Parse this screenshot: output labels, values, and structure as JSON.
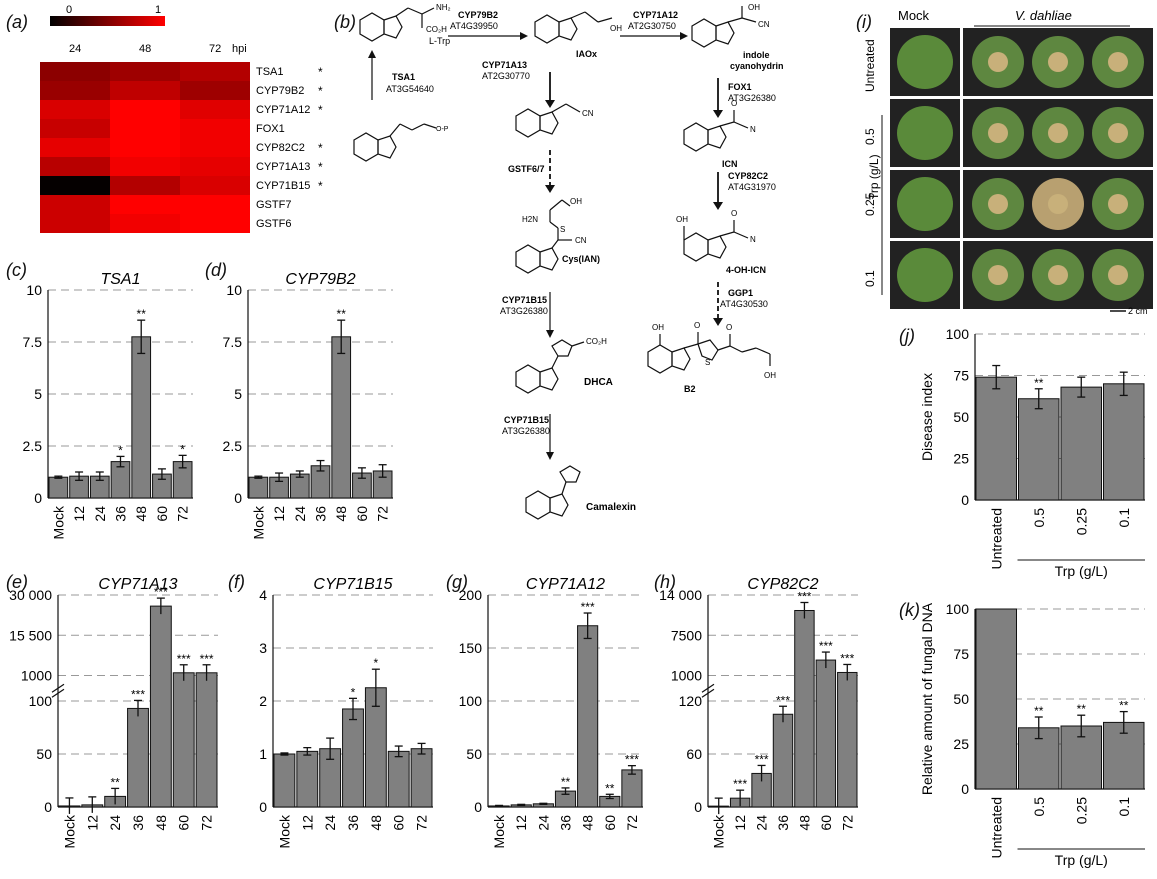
{
  "panels": {
    "a": "(a)",
    "b": "(b)",
    "c": "(c)",
    "d": "(d)",
    "e": "(e)",
    "f": "(f)",
    "g": "(g)",
    "h": "(h)",
    "i": "(i)",
    "j": "(j)",
    "k": "(k)"
  },
  "heatmap": {
    "scale_min": "0",
    "scale_max": "1",
    "col_labels": [
      "24",
      "48",
      "72"
    ],
    "hpi": "hpi",
    "colors": {
      "low": "#000000",
      "high": "#ff0000"
    },
    "rows": [
      {
        "gene": "TSA1",
        "star": "*",
        "values": [
          0.55,
          0.62,
          0.7
        ]
      },
      {
        "gene": "CYP79B2",
        "star": "*",
        "values": [
          0.6,
          0.75,
          0.62
        ]
      },
      {
        "gene": "CYP71A12",
        "star": "*",
        "values": [
          0.85,
          1.0,
          0.88
        ]
      },
      {
        "gene": "FOX1",
        "star": "",
        "values": [
          0.78,
          1.0,
          0.95
        ]
      },
      {
        "gene": "CYP82C2",
        "star": "*",
        "values": [
          0.9,
          1.0,
          0.95
        ]
      },
      {
        "gene": "CYP71A13",
        "star": "*",
        "values": [
          0.72,
          0.95,
          0.9
        ]
      },
      {
        "gene": "CYP71B15",
        "star": "*",
        "values": [
          0.02,
          0.7,
          0.85
        ]
      },
      {
        "gene": "GSTF7",
        "star": "",
        "values": [
          0.8,
          1.0,
          1.0
        ]
      },
      {
        "gene": "GSTF6",
        "star": "",
        "values": [
          0.8,
          0.95,
          1.0
        ]
      }
    ]
  },
  "pathway": {
    "ltrp": "L-Trp",
    "cyp79b2": "CYP79B2",
    "at4g39950": "AT4G39950",
    "iaox": "IAOx",
    "cyp71a12": "CYP71A12",
    "at2g30750": "AT2G30750",
    "indole": "indole",
    "cyanohydrin": "cyanohydrin",
    "tsa1": "TSA1",
    "at3g54640": "AT3G54640",
    "cyp71a13": "CYP71A13",
    "at2g30770": "AT2G30770",
    "fox1": "FOX1",
    "at3g26380a": "AT3G26380",
    "icn": "ICN",
    "gstf67": "GSTF6/7",
    "cyp82c2": "CYP82C2",
    "at4g31970": "AT4G31970",
    "cysian": "Cys(IAN)",
    "ohicn": "4-OH-ICN",
    "ggp1": "GGP1",
    "at4g30530": "AT4G30530",
    "cyp71b15a": "CYP71B15",
    "at3g26380b": "AT3G26380",
    "dhca": "DHCA",
    "b2": "B2",
    "cyp71b15b": "CYP71B15",
    "at3g26380c": "AT3G26380",
    "camalexin": "Camalexin",
    "cn": "CN",
    "co2h": "CO₂H",
    "h2n": "H2N",
    "oh": "OH",
    "o": "O",
    "nh2": "NH₂",
    "n": "N",
    "h": "H",
    "s": "S"
  },
  "photos": {
    "mock": "Mock",
    "vdahliae": "V. dahliae",
    "rows": [
      "Untreated",
      "0.5",
      "0.25",
      "0.1"
    ],
    "trp_label": "Trp (g/L)",
    "scale": "2 cm"
  },
  "chart_data": [
    {
      "id": "c",
      "type": "bar",
      "title": "TSA1",
      "categories": [
        "Mock",
        "12",
        "24",
        "36",
        "48",
        "60",
        "72"
      ],
      "values": [
        1.0,
        1.05,
        1.05,
        1.75,
        7.75,
        1.15,
        1.75
      ],
      "errors": [
        0.05,
        0.2,
        0.2,
        0.25,
        0.8,
        0.25,
        0.3
      ],
      "sig": [
        "",
        "",
        "",
        "*",
        "**",
        "",
        "*"
      ],
      "ylim": [
        0,
        10
      ],
      "ticks": [
        "0",
        "2.5",
        "5",
        "7.5",
        "10"
      ],
      "tickvals": [
        0,
        2.5,
        5,
        7.5,
        10
      ]
    },
    {
      "id": "d",
      "type": "bar",
      "title": "CYP79B2",
      "categories": [
        "Mock",
        "12",
        "24",
        "36",
        "48",
        "60",
        "72"
      ],
      "values": [
        1.0,
        1.0,
        1.15,
        1.55,
        7.75,
        1.2,
        1.3
      ],
      "errors": [
        0.05,
        0.2,
        0.15,
        0.25,
        0.8,
        0.25,
        0.3
      ],
      "sig": [
        "",
        "",
        "",
        "",
        "**",
        "",
        ""
      ],
      "ylim": [
        0,
        10
      ],
      "ticks": [
        "0",
        "2.5",
        "5",
        "7.5",
        "10"
      ],
      "tickvals": [
        0,
        2.5,
        5,
        7.5,
        10
      ]
    },
    {
      "id": "e",
      "type": "bar",
      "title": "CYP71A13",
      "categories": [
        "Mock",
        "12",
        "24",
        "36",
        "48",
        "60",
        "72"
      ],
      "values": [
        1,
        2,
        10,
        93,
        26000,
        2000,
        2000
      ],
      "sig": [
        "",
        "",
        "**",
        "***",
        "***",
        "***",
        "***"
      ],
      "broken_axis": true,
      "lower_ticks": [
        "0",
        "50",
        "100"
      ],
      "upper_ticks": [
        "1000",
        "15 500",
        "30 000"
      ]
    },
    {
      "id": "f",
      "type": "bar",
      "title": "CYP71B15",
      "categories": [
        "Mock",
        "12",
        "24",
        "36",
        "48",
        "60",
        "72"
      ],
      "values": [
        1.0,
        1.05,
        1.1,
        1.85,
        2.25,
        1.05,
        1.1
      ],
      "errors": [
        0.02,
        0.07,
        0.2,
        0.2,
        0.35,
        0.1,
        0.1
      ],
      "sig": [
        "",
        "",
        "",
        "*",
        "*",
        "",
        ""
      ],
      "ylim": [
        0,
        4
      ],
      "ticks": [
        "0",
        "1",
        "2",
        "3",
        "4"
      ],
      "tickvals": [
        0,
        1,
        2,
        3,
        4
      ]
    },
    {
      "id": "g",
      "type": "bar",
      "title": "CYP71A12",
      "categories": [
        "Mock",
        "12",
        "24",
        "36",
        "48",
        "60",
        "72"
      ],
      "values": [
        1,
        2,
        3,
        15,
        171,
        10,
        35
      ],
      "errors": [
        0.5,
        0.5,
        0.5,
        3,
        12,
        2,
        4
      ],
      "sig": [
        "",
        "",
        "",
        "**",
        "***",
        "**",
        "***"
      ],
      "ylim": [
        0,
        200
      ],
      "ticks": [
        "0",
        "50",
        "100",
        "150",
        "200"
      ],
      "tickvals": [
        0,
        50,
        100,
        150,
        200
      ]
    },
    {
      "id": "h",
      "type": "bar",
      "title": "CYP82C2",
      "categories": [
        "Mock",
        "12",
        "24",
        "36",
        "48",
        "60",
        "72"
      ],
      "values": [
        1,
        10,
        38,
        105,
        11500,
        3500,
        1500
      ],
      "sig": [
        "",
        "***",
        "***",
        "***",
        "***",
        "***",
        "***"
      ],
      "broken_axis": true,
      "lower_ticks": [
        "0",
        "60",
        "120"
      ],
      "upper_ticks": [
        "1000",
        "7500",
        "14 000"
      ]
    },
    {
      "id": "j",
      "type": "bar",
      "ylabel": "Disease index",
      "xgroup": "Trp (g/L)",
      "categories": [
        "Untreated",
        "0.5",
        "0.25",
        "0.1"
      ],
      "values": [
        74,
        61,
        68,
        70
      ],
      "errors": [
        7,
        6,
        6,
        7
      ],
      "sig": [
        "",
        "**",
        "",
        ""
      ],
      "ylim": [
        0,
        100
      ],
      "ticks": [
        "0",
        "25",
        "50",
        "75",
        "100"
      ],
      "tickvals": [
        0,
        25,
        50,
        75,
        100
      ]
    },
    {
      "id": "k",
      "type": "bar",
      "ylabel": "Relative amount of fungal DNA",
      "xgroup": "Trp (g/L)",
      "categories": [
        "Untreated",
        "0.5",
        "0.25",
        "0.1"
      ],
      "values": [
        100,
        34,
        35,
        37
      ],
      "errors": [
        0,
        6,
        6,
        6
      ],
      "sig": [
        "",
        "**",
        "**",
        "**"
      ],
      "ylim": [
        0,
        100
      ],
      "ticks": [
        "0",
        "25",
        "50",
        "75",
        "100"
      ],
      "tickvals": [
        0,
        25,
        50,
        75,
        100
      ]
    }
  ]
}
